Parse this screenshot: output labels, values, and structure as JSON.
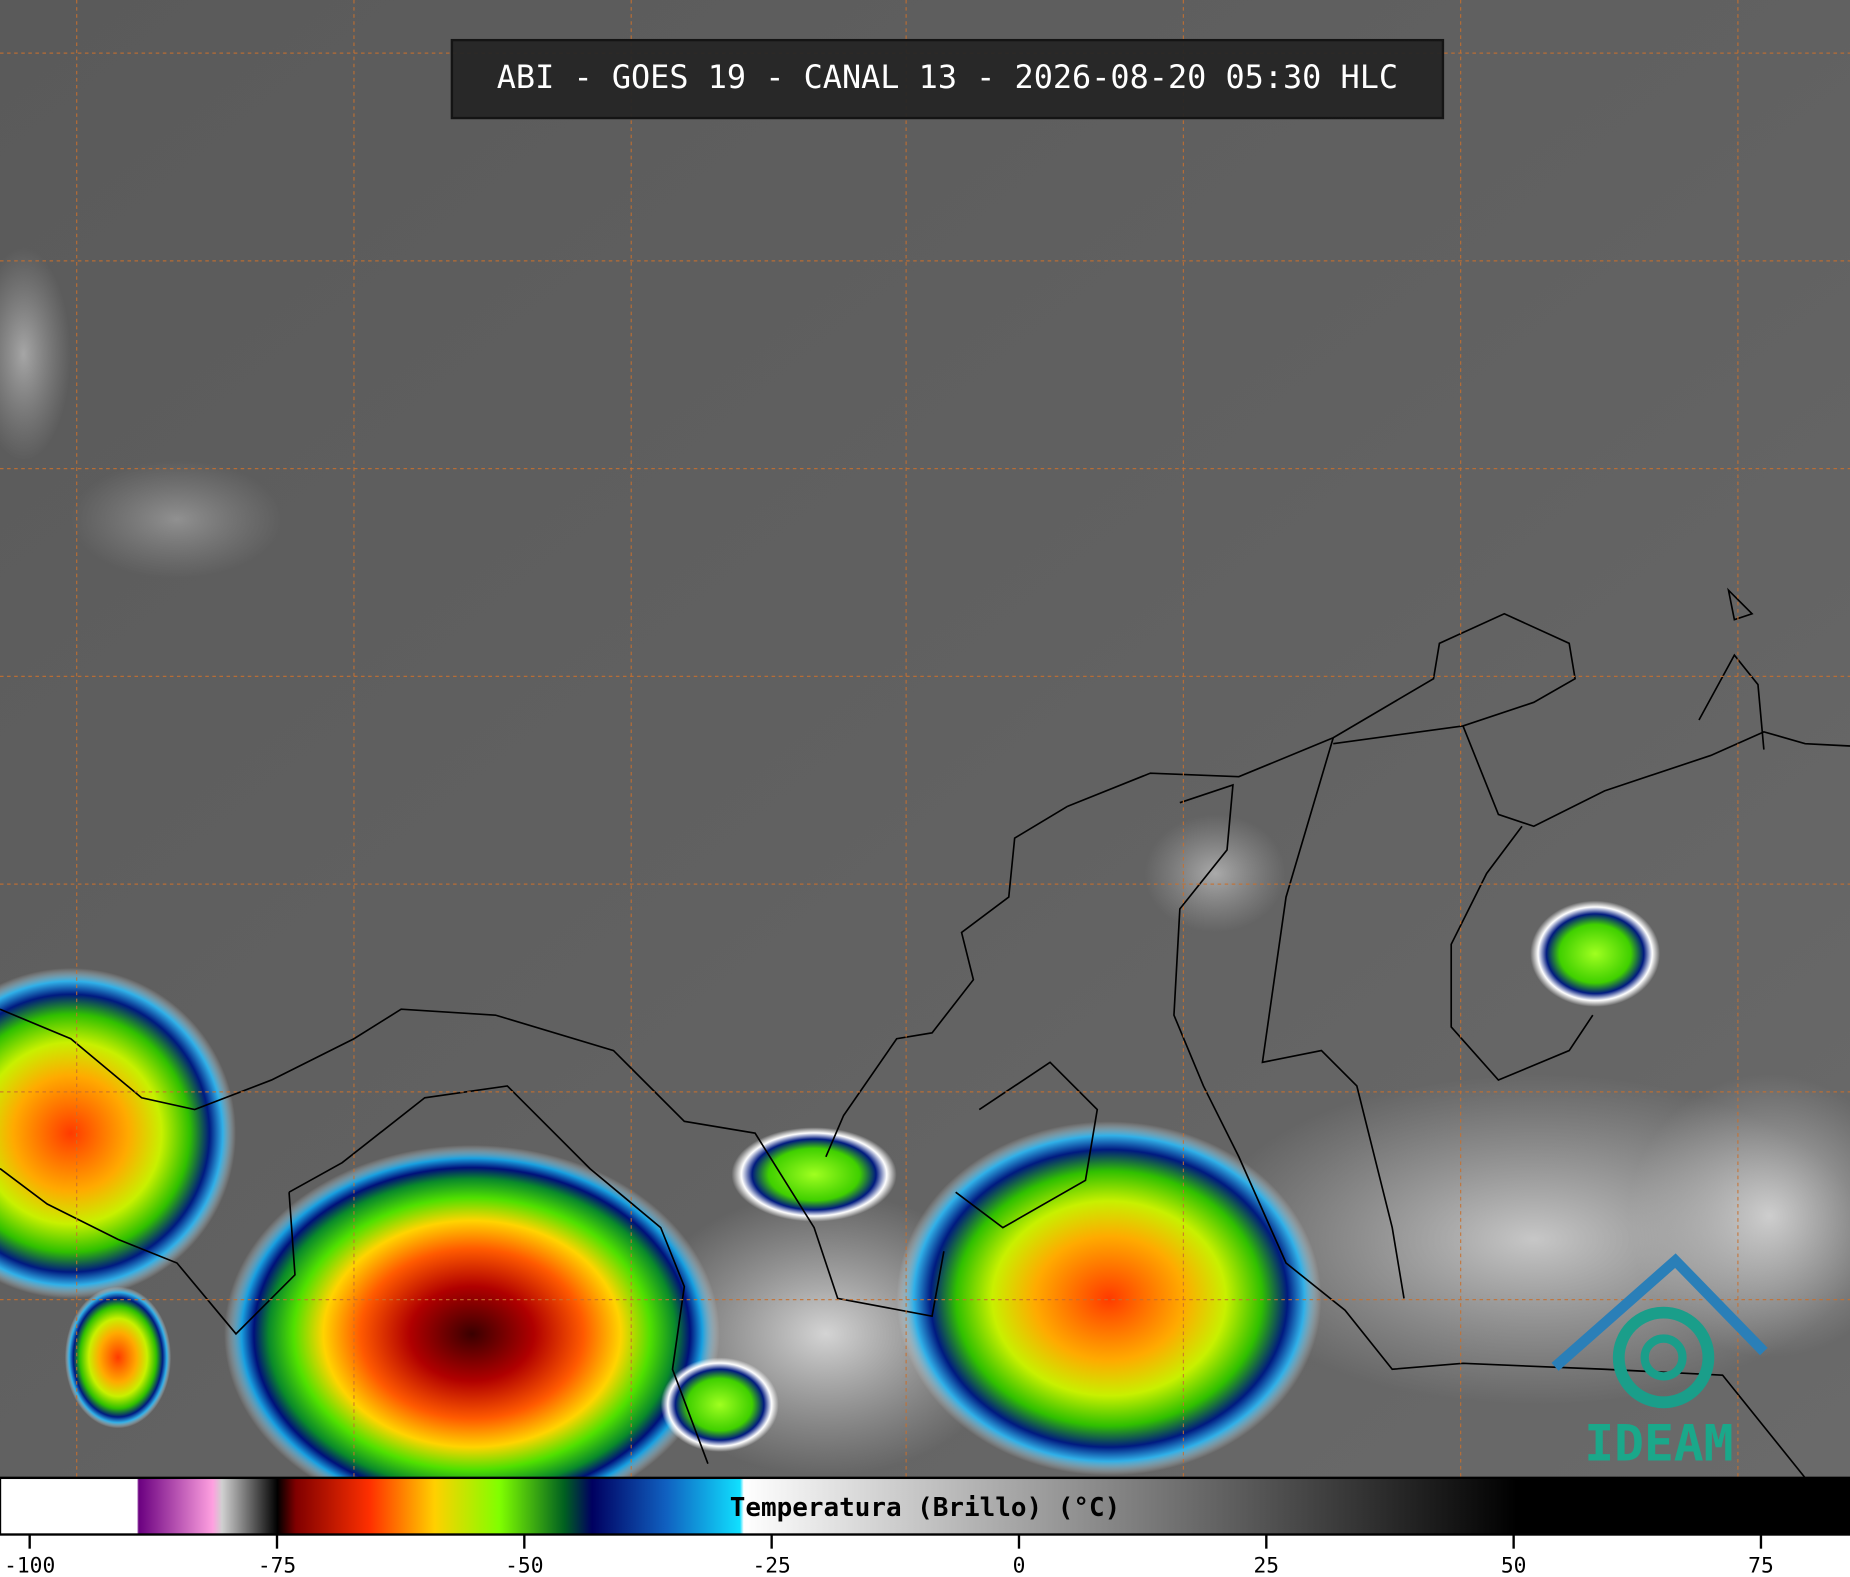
{
  "header": {
    "title": "ABI - GOES 19 - CANAL 13 - 2026-08-20 05:30 HLC"
  },
  "colorbar": {
    "label": "Temperatura (Brillo) (°C)",
    "range": [
      -103,
      84
    ],
    "ticks": [
      -100,
      -75,
      -50,
      -25,
      0,
      25,
      50,
      75
    ]
  },
  "logo": {
    "text": "IDEAM"
  }
}
